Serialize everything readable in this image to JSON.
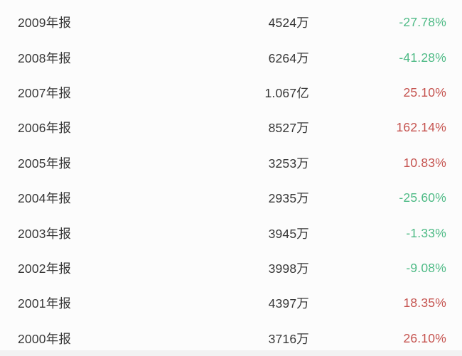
{
  "colors": {
    "up": "#c5524e",
    "down": "#4dba85",
    "text": "#363636",
    "background": "#fcfcfc",
    "footer_strip": "#f2f2f2"
  },
  "table": {
    "columns": [
      "period",
      "value",
      "change"
    ],
    "rows": [
      {
        "period": "2009年报",
        "value": "4524万",
        "change": "-27.78%",
        "direction": "down"
      },
      {
        "period": "2008年报",
        "value": "6264万",
        "change": "-41.28%",
        "direction": "down"
      },
      {
        "period": "2007年报",
        "value": "1.067亿",
        "change": "25.10%",
        "direction": "up"
      },
      {
        "period": "2006年报",
        "value": "8527万",
        "change": "162.14%",
        "direction": "up"
      },
      {
        "period": "2005年报",
        "value": "3253万",
        "change": "10.83%",
        "direction": "up"
      },
      {
        "period": "2004年报",
        "value": "2935万",
        "change": "-25.60%",
        "direction": "down"
      },
      {
        "period": "2003年报",
        "value": "3945万",
        "change": "-1.33%",
        "direction": "down"
      },
      {
        "period": "2002年报",
        "value": "3998万",
        "change": "-9.08%",
        "direction": "down"
      },
      {
        "period": "2001年报",
        "value": "4397万",
        "change": "18.35%",
        "direction": "up"
      },
      {
        "period": "2000年报",
        "value": "3716万",
        "change": "26.10%",
        "direction": "up"
      }
    ]
  }
}
